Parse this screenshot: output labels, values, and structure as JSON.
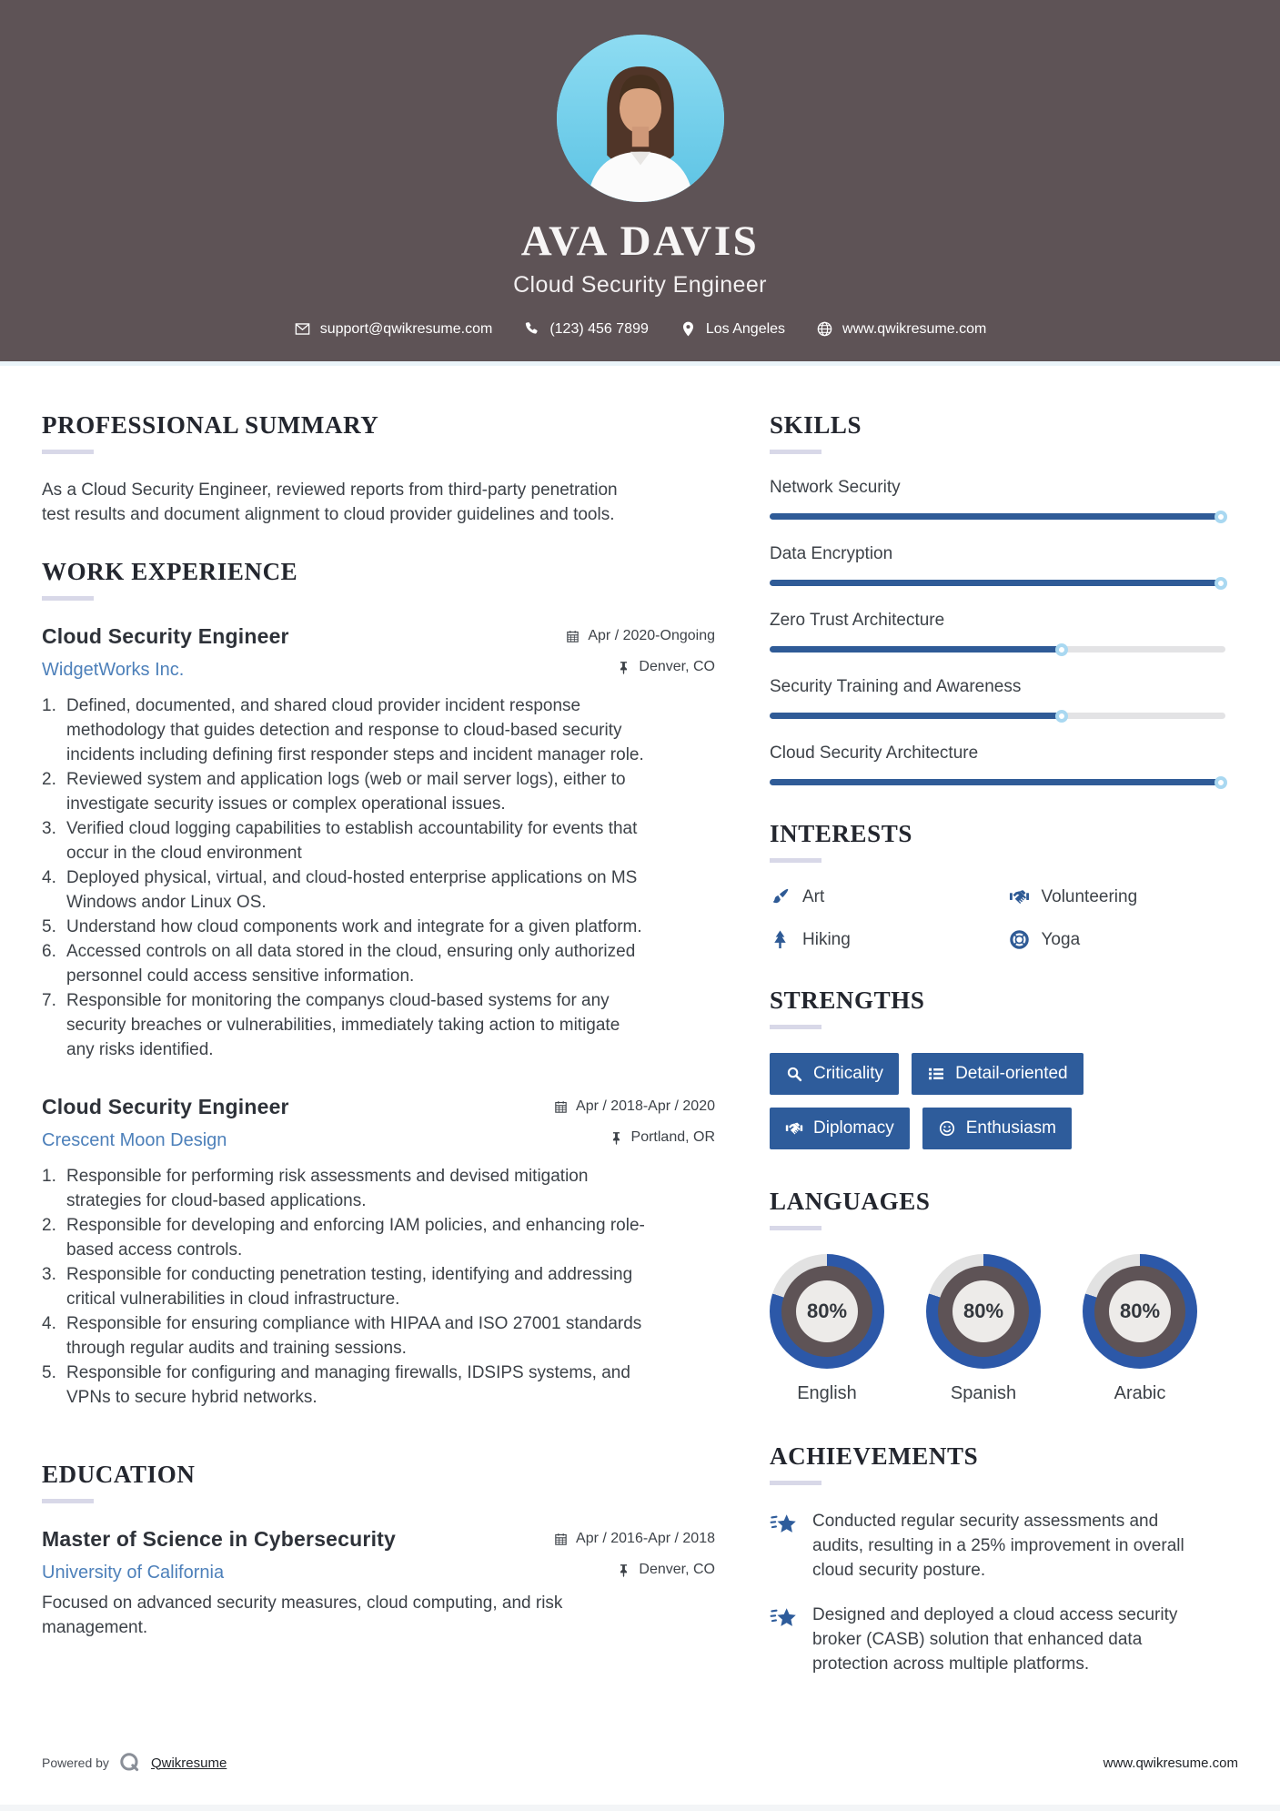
{
  "header": {
    "name": "AVA DAVIS",
    "title": "Cloud Security Engineer",
    "contact": {
      "email": "support@qwikresume.com",
      "phone": "(123) 456 7899",
      "location": "Los Angeles",
      "website": "www.qwikresume.com"
    }
  },
  "summary": {
    "heading": "PROFESSIONAL SUMMARY",
    "text": "As a Cloud Security Engineer, reviewed reports from third-party penetration test results and document alignment to cloud provider guidelines and tools."
  },
  "work": {
    "heading": "WORK EXPERIENCE",
    "jobs": [
      {
        "title": "Cloud Security Engineer",
        "company": "WidgetWorks Inc.",
        "date": "Apr / 2020-Ongoing",
        "location": "Denver, CO",
        "bullets": [
          {
            "num": "1.",
            "text": "Defined, documented, and shared cloud provider incident response methodology that guides detection and response to cloud-based security incidents including defining first responder steps and incident manager role."
          },
          {
            "num": "2.",
            "text": "Reviewed system and application logs (web or mail server logs), either to investigate security issues or complex operational issues."
          },
          {
            "num": "3.",
            "text": "Verified cloud logging capabilities to establish accountability for events that occur in the cloud environment"
          },
          {
            "num": "4.",
            "text": "Deployed physical, virtual, and cloud-hosted enterprise applications on MS Windows andor Linux OS."
          },
          {
            "num": "5.",
            "text": "Understand how cloud components work and integrate for a given platform."
          },
          {
            "num": "6.",
            "text": "Accessed controls on all data stored in the cloud, ensuring only authorized personnel could access sensitive information."
          },
          {
            "num": "7.",
            "text": "Responsible for monitoring the companys cloud-based systems for any security breaches or vulnerabilities, immediately taking action to mitigate any risks identified."
          }
        ]
      },
      {
        "title": "Cloud Security Engineer",
        "company": "Crescent Moon Design",
        "date": "Apr / 2018-Apr / 2020",
        "location": "Portland, OR",
        "bullets": [
          {
            "num": "1.",
            "text": "Responsible for performing risk assessments and devised mitigation strategies for cloud-based applications."
          },
          {
            "num": "2.",
            "text": "Responsible for developing and enforcing IAM policies, and enhancing role-based access controls."
          },
          {
            "num": "3.",
            "text": "Responsible for conducting penetration testing, identifying and addressing critical vulnerabilities in cloud infrastructure."
          },
          {
            "num": "4.",
            "text": "Responsible for ensuring compliance with HIPAA and ISO 27001 standards through regular audits and training sessions."
          },
          {
            "num": "5.",
            "text": "Responsible for configuring and managing firewalls, IDSIPS systems, and VPNs to secure hybrid networks."
          }
        ]
      }
    ]
  },
  "education": {
    "heading": "EDUCATION",
    "degree": "Master of Science in Cybersecurity",
    "school": "University of California",
    "date": "Apr / 2016-Apr / 2018",
    "location": "Denver, CO",
    "text": "Focused on advanced security measures, cloud computing, and risk management."
  },
  "skills": {
    "heading": "SKILLS",
    "items": [
      {
        "name": "Network Security",
        "percent": 100
      },
      {
        "name": "Data Encryption",
        "percent": 100
      },
      {
        "name": "Zero Trust Architecture",
        "percent": 65
      },
      {
        "name": "Security Training and Awareness",
        "percent": 65
      },
      {
        "name": "Cloud Security Architecture",
        "percent": 100
      }
    ]
  },
  "interests": {
    "heading": "INTERESTS",
    "items": [
      {
        "label": "Art",
        "icon": "paintbrush-icon"
      },
      {
        "label": "Volunteering",
        "icon": "handshake-icon"
      },
      {
        "label": "Hiking",
        "icon": "tree-icon"
      },
      {
        "label": "Yoga",
        "icon": "lifering-icon"
      }
    ]
  },
  "strengths": {
    "heading": "STRENGTHS",
    "items": [
      {
        "label": "Criticality",
        "icon": "magnifier-icon"
      },
      {
        "label": "Detail-oriented",
        "icon": "list-icon"
      },
      {
        "label": "Diplomacy",
        "icon": "handshake-icon"
      },
      {
        "label": "Enthusiasm",
        "icon": "smiley-icon"
      }
    ]
  },
  "languages": {
    "heading": "LANGUAGES",
    "items": [
      {
        "label": "English",
        "percent": 80,
        "display": "80%"
      },
      {
        "label": "Spanish",
        "percent": 80,
        "display": "80%"
      },
      {
        "label": "Arabic",
        "percent": 80,
        "display": "80%"
      }
    ]
  },
  "achievements": {
    "heading": "ACHIEVEMENTS",
    "items": [
      {
        "text": "Conducted regular security assessments and audits, resulting in a 25% improvement in overall cloud security posture."
      },
      {
        "text": "Designed and deployed a cloud access security broker (CASB) solution that enhanced data protection across multiple platforms."
      }
    ]
  },
  "footer": {
    "powered_by": "Powered by",
    "brand": "Qwikresume",
    "website": "www.qwikresume.com"
  },
  "colors": {
    "header_bg": "#5e5356",
    "bar_blue": "#2f5b97",
    "button_blue": "#2e5c9b",
    "donut_blue": "#2c58a8",
    "donut_track": "#e2e2e2",
    "link_blue": "#4d80ba",
    "rule_lavender": "#d8d8e8"
  }
}
